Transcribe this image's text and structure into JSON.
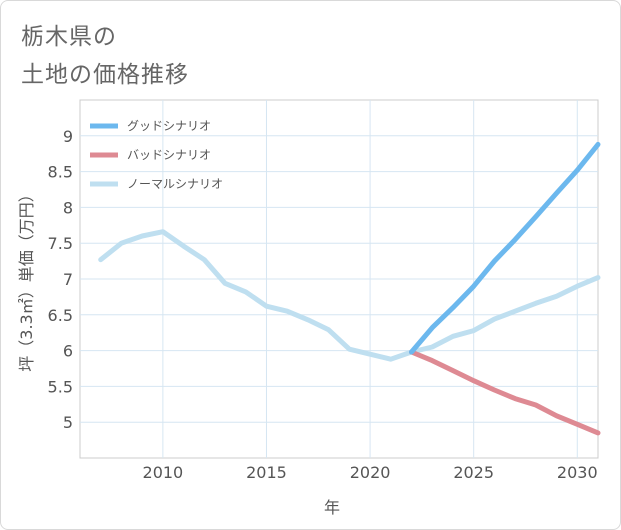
{
  "title_line1": "栃木県の",
  "title_line2": "土地の価格推移",
  "chart_data": {
    "type": "line",
    "xlabel": "年",
    "ylabel": "坪（3.3㎡）単価（万円）",
    "xlim": [
      2006,
      2031
    ],
    "ylim": [
      4.5,
      9.5
    ],
    "xticks": [
      2010,
      2015,
      2020,
      2025,
      2030
    ],
    "yticks": [
      5,
      5.5,
      6,
      6.5,
      7,
      7.5,
      8,
      8.5,
      9
    ],
    "grid": true,
    "legend_position": "top-left",
    "series": [
      {
        "name": "グッドシナリオ",
        "color": "#6cb8ee",
        "x": [
          2022,
          2023,
          2024,
          2025,
          2026,
          2027,
          2028,
          2029,
          2030,
          2031
        ],
        "y": [
          5.98,
          6.32,
          6.6,
          6.9,
          7.25,
          7.55,
          7.87,
          8.2,
          8.52,
          8.88
        ]
      },
      {
        "name": "バッドシナリオ",
        "color": "#de8a93",
        "x": [
          2022,
          2023,
          2024,
          2025,
          2026,
          2027,
          2028,
          2029,
          2030,
          2031
        ],
        "y": [
          5.98,
          5.86,
          5.72,
          5.58,
          5.45,
          5.33,
          5.24,
          5.09,
          4.97,
          4.85
        ]
      },
      {
        "name": "ノーマルシナリオ",
        "color": "#bfdff0",
        "x": [
          2007,
          2008,
          2009,
          2010,
          2011,
          2012,
          2013,
          2014,
          2015,
          2016,
          2017,
          2018,
          2019,
          2020,
          2021,
          2022,
          2023,
          2024,
          2025,
          2026,
          2027,
          2028,
          2029,
          2030,
          2031
        ],
        "y": [
          7.27,
          7.5,
          7.6,
          7.66,
          7.46,
          7.27,
          6.94,
          6.82,
          6.62,
          6.55,
          6.43,
          6.29,
          6.02,
          5.95,
          5.88,
          5.98,
          6.05,
          6.2,
          6.28,
          6.44,
          6.55,
          6.66,
          6.76,
          6.9,
          7.02
        ]
      }
    ]
  }
}
